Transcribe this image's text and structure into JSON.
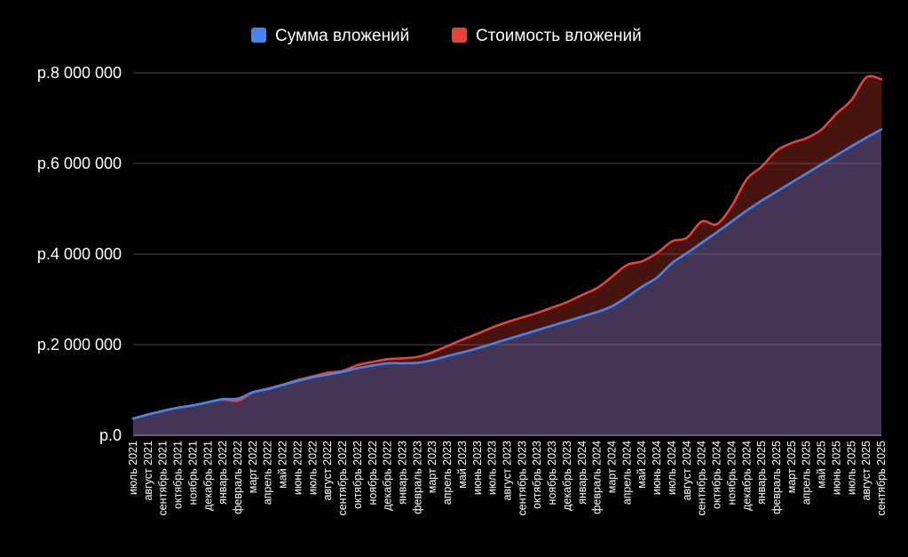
{
  "chart_data": {
    "type": "area",
    "title": "",
    "xlabel": "",
    "ylabel": "",
    "ylim": [
      0,
      8000000
    ],
    "yticks": [
      {
        "value": 0,
        "label": "р.0"
      },
      {
        "value": 2000000,
        "label": "р.2 000 000"
      },
      {
        "value": 4000000,
        "label": "р.4 000 000"
      },
      {
        "value": 6000000,
        "label": "р.6 000 000"
      },
      {
        "value": 8000000,
        "label": "р.8 000 000"
      }
    ],
    "grid": true,
    "legend_position": "top",
    "categories": [
      "июль 2021",
      "август 2021",
      "сентябрь 2021",
      "октябрь 2021",
      "ноябрь 2021",
      "декабрь 2021",
      "январь 2022",
      "февраль 2022",
      "март 2022",
      "апрель 2022",
      "май 2022",
      "июнь 2022",
      "июль 2022",
      "август 2022",
      "сентябрь 2022",
      "октябрь 2022",
      "ноябрь 2022",
      "декабрь 2022",
      "январь 2023",
      "февраль 2023",
      "март 2023",
      "апрель 2023",
      "май 2023",
      "июнь 2023",
      "июль 2023",
      "август 2023",
      "сентябрь 2023",
      "октябрь 2023",
      "ноябрь 2023",
      "декабрь 2023",
      "январь 2024",
      "февраль 2024",
      "март 2024",
      "апрель 2024",
      "май 2024",
      "июнь 2024",
      "июль 2024",
      "август 2024",
      "сентябрь 2024",
      "октябрь 2024",
      "ноябрь 2024",
      "декабрь 2024",
      "январь 2025",
      "февраль 2025",
      "март 2025",
      "апрель 2025",
      "май 2025",
      "июнь 2025",
      "июль 2025",
      "август 2025",
      "сентябрь 2025"
    ],
    "series": [
      {
        "name": "Сумма вложений",
        "color": "#4285f4",
        "values": [
          370000,
          460000,
          540000,
          610000,
          660000,
          730000,
          800000,
          810000,
          950000,
          1020000,
          1110000,
          1200000,
          1280000,
          1340000,
          1400000,
          1480000,
          1540000,
          1590000,
          1590000,
          1600000,
          1660000,
          1750000,
          1830000,
          1920000,
          2020000,
          2120000,
          2220000,
          2320000,
          2420000,
          2520000,
          2620000,
          2720000,
          2850000,
          3050000,
          3280000,
          3480000,
          3800000,
          4020000,
          4250000,
          4480000,
          4720000,
          4960000,
          5180000,
          5380000,
          5580000,
          5780000,
          5980000,
          6180000,
          6380000,
          6570000,
          6750000
        ]
      },
      {
        "name": "Стоимость вложений",
        "color": "#ea4335",
        "values": [
          370000,
          460000,
          540000,
          610000,
          660000,
          730000,
          790000,
          760000,
          950000,
          1030000,
          1120000,
          1220000,
          1300000,
          1380000,
          1420000,
          1550000,
          1620000,
          1680000,
          1700000,
          1730000,
          1830000,
          1970000,
          2110000,
          2240000,
          2380000,
          2500000,
          2600000,
          2700000,
          2820000,
          2940000,
          3100000,
          3250000,
          3500000,
          3760000,
          3840000,
          4020000,
          4280000,
          4360000,
          4720000,
          4660000,
          5060000,
          5650000,
          5930000,
          6280000,
          6450000,
          6560000,
          6750000,
          7100000,
          7400000,
          7900000,
          7860000
        ]
      }
    ]
  }
}
